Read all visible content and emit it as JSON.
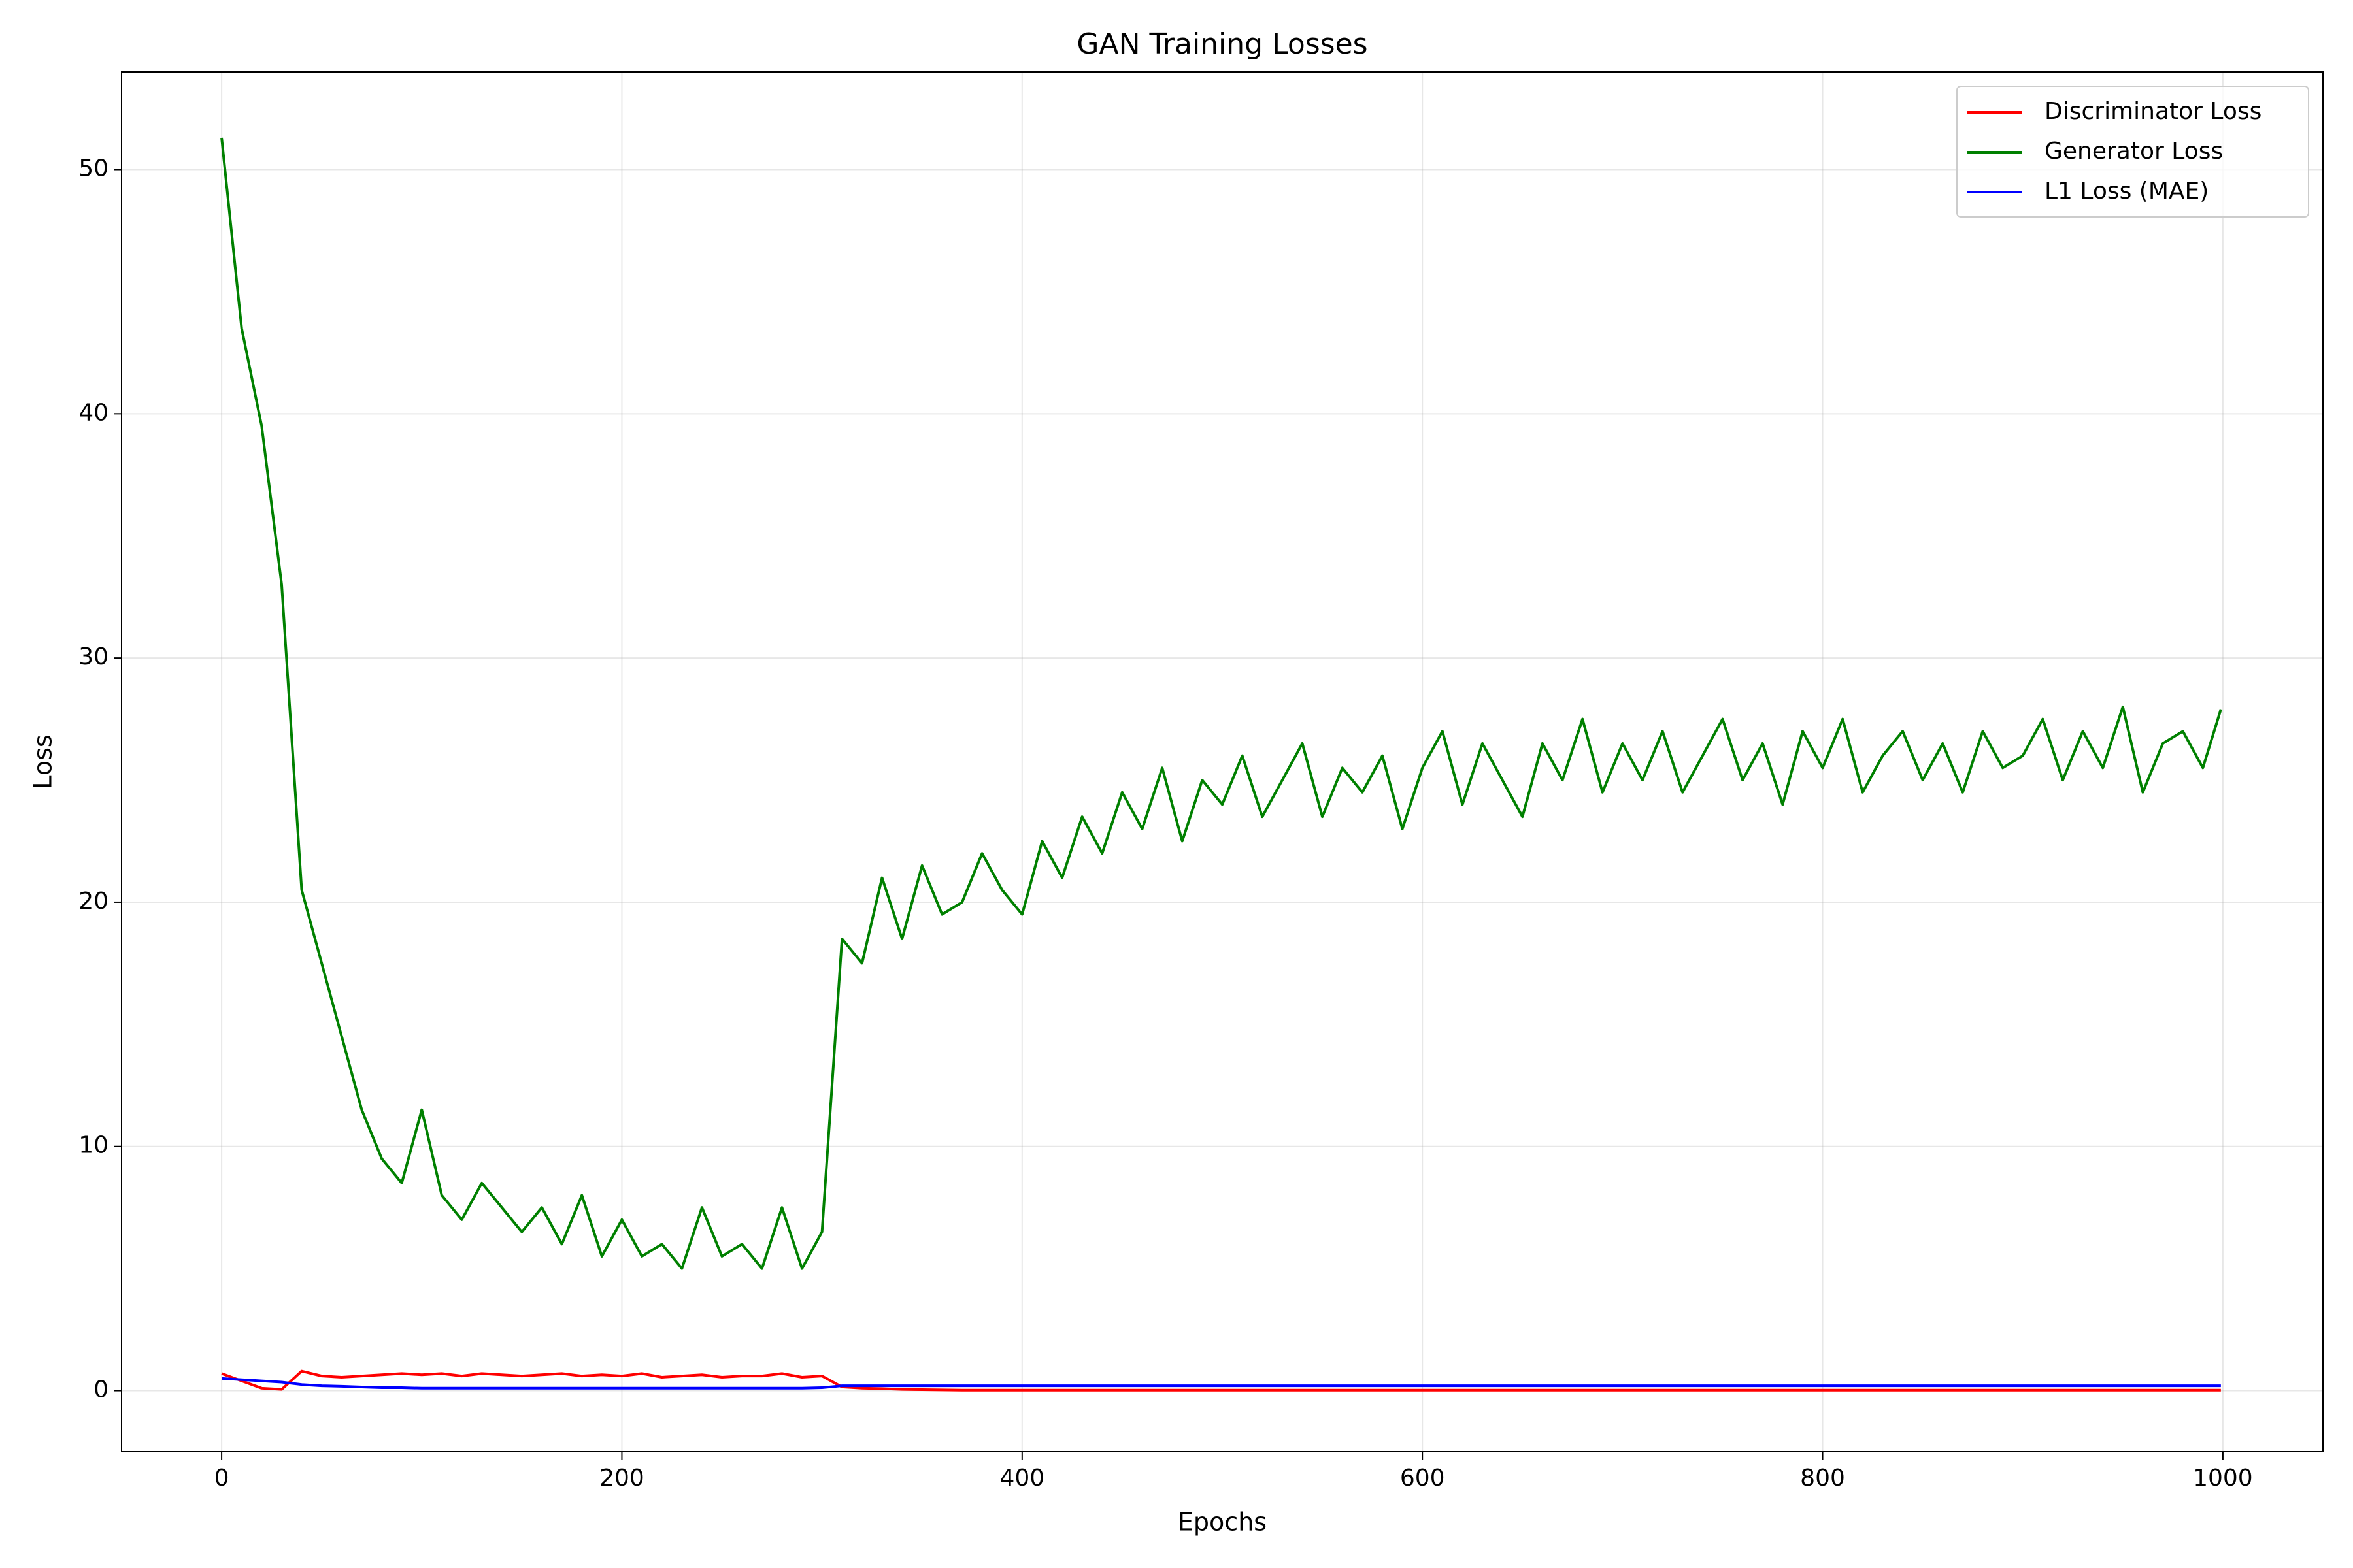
{
  "chart_data": {
    "type": "line",
    "title": "GAN Training Losses",
    "x_label": "Epochs",
    "y_label": "Loss",
    "x": [
      0,
      10,
      20,
      30,
      40,
      50,
      60,
      70,
      80,
      90,
      100,
      110,
      120,
      130,
      140,
      150,
      160,
      170,
      180,
      190,
      200,
      210,
      220,
      230,
      240,
      250,
      260,
      270,
      280,
      290,
      300,
      310,
      320,
      330,
      340,
      350,
      360,
      370,
      380,
      390,
      400,
      410,
      420,
      430,
      440,
      450,
      460,
      470,
      480,
      490,
      500,
      510,
      520,
      530,
      540,
      550,
      560,
      570,
      580,
      590,
      600,
      610,
      620,
      630,
      640,
      650,
      660,
      670,
      680,
      690,
      700,
      710,
      720,
      730,
      740,
      750,
      760,
      770,
      780,
      790,
      800,
      810,
      820,
      830,
      840,
      850,
      860,
      870,
      880,
      890,
      900,
      910,
      920,
      930,
      940,
      950,
      960,
      970,
      980,
      990,
      999
    ],
    "series": [
      {
        "name": "Discriminator Loss",
        "color": "#ff0000",
        "values": [
          0.7,
          0.4,
          0.1,
          0.05,
          0.8,
          0.6,
          0.55,
          0.6,
          0.65,
          0.7,
          0.65,
          0.7,
          0.6,
          0.7,
          0.65,
          0.6,
          0.65,
          0.7,
          0.6,
          0.65,
          0.6,
          0.7,
          0.55,
          0.6,
          0.65,
          0.55,
          0.6,
          0.6,
          0.7,
          0.55,
          0.6,
          0.15,
          0.1,
          0.08,
          0.05,
          0.04,
          0.03,
          0.02,
          0.02,
          0.02,
          0.02,
          0.02,
          0.02,
          0.02,
          0.02,
          0.02,
          0.02,
          0.02,
          0.02,
          0.02,
          0.02,
          0.02,
          0.02,
          0.02,
          0.02,
          0.02,
          0.02,
          0.02,
          0.02,
          0.02,
          0.02,
          0.02,
          0.02,
          0.02,
          0.02,
          0.02,
          0.02,
          0.02,
          0.02,
          0.02,
          0.02,
          0.02,
          0.02,
          0.02,
          0.02,
          0.02,
          0.02,
          0.02,
          0.02,
          0.02,
          0.02,
          0.02,
          0.02,
          0.02,
          0.02,
          0.02,
          0.02,
          0.02,
          0.02,
          0.02,
          0.02,
          0.02,
          0.02,
          0.02,
          0.02,
          0.02,
          0.02,
          0.02,
          0.02,
          0.02,
          0.02
        ]
      },
      {
        "name": "Generator Loss",
        "color": "#008000",
        "values": [
          51.3,
          43.5,
          39.5,
          33.0,
          20.5,
          17.5,
          14.5,
          11.5,
          9.5,
          8.5,
          11.5,
          8.0,
          7.0,
          8.5,
          7.5,
          6.5,
          7.5,
          6.0,
          8.0,
          5.5,
          7.0,
          5.5,
          6.0,
          5.0,
          7.5,
          5.5,
          6.0,
          5.0,
          7.5,
          5.0,
          6.5,
          18.5,
          17.5,
          21.0,
          18.5,
          21.5,
          19.5,
          20.0,
          22.0,
          20.5,
          19.5,
          22.5,
          21.0,
          23.5,
          22.0,
          24.5,
          23.0,
          25.5,
          22.5,
          25.0,
          24.0,
          26.0,
          23.5,
          25.0,
          26.5,
          23.5,
          25.5,
          24.5,
          26.0,
          23.0,
          25.5,
          27.0,
          24.0,
          26.5,
          25.0,
          23.5,
          26.5,
          25.0,
          27.5,
          24.5,
          26.5,
          25.0,
          27.0,
          24.5,
          26.0,
          27.5,
          25.0,
          26.5,
          24.0,
          27.0,
          25.5,
          27.5,
          24.5,
          26.0,
          27.0,
          25.0,
          26.5,
          24.5,
          27.0,
          25.5,
          26.0,
          27.5,
          25.0,
          27.0,
          25.5,
          28.0,
          24.5,
          26.5,
          27.0,
          25.5,
          27.9
        ]
      },
      {
        "name": "L1 Loss (MAE)",
        "color": "#0000ff",
        "values": [
          0.5,
          0.45,
          0.4,
          0.35,
          0.25,
          0.2,
          0.18,
          0.15,
          0.12,
          0.12,
          0.1,
          0.1,
          0.1,
          0.1,
          0.1,
          0.1,
          0.1,
          0.1,
          0.1,
          0.1,
          0.1,
          0.1,
          0.1,
          0.1,
          0.1,
          0.1,
          0.1,
          0.1,
          0.1,
          0.1,
          0.12,
          0.2,
          0.2,
          0.2,
          0.2,
          0.2,
          0.2,
          0.2,
          0.2,
          0.2,
          0.2,
          0.2,
          0.2,
          0.2,
          0.2,
          0.2,
          0.2,
          0.2,
          0.2,
          0.2,
          0.2,
          0.2,
          0.2,
          0.2,
          0.2,
          0.2,
          0.2,
          0.2,
          0.2,
          0.2,
          0.2,
          0.2,
          0.2,
          0.2,
          0.2,
          0.2,
          0.2,
          0.2,
          0.2,
          0.2,
          0.2,
          0.2,
          0.2,
          0.2,
          0.2,
          0.2,
          0.2,
          0.2,
          0.2,
          0.2,
          0.2,
          0.2,
          0.2,
          0.2,
          0.2,
          0.2,
          0.2,
          0.2,
          0.2,
          0.2,
          0.2,
          0.2,
          0.2,
          0.2,
          0.2,
          0.2,
          0.2,
          0.2,
          0.2,
          0.2,
          0.2
        ]
      }
    ],
    "xlim": [
      -50,
      1050
    ],
    "ylim": [
      -2.5,
      54
    ],
    "xticks": [
      0,
      200,
      400,
      600,
      800,
      1000
    ],
    "yticks": [
      0,
      10,
      20,
      30,
      40,
      50
    ],
    "grid": true,
    "legend": "upper right"
  }
}
